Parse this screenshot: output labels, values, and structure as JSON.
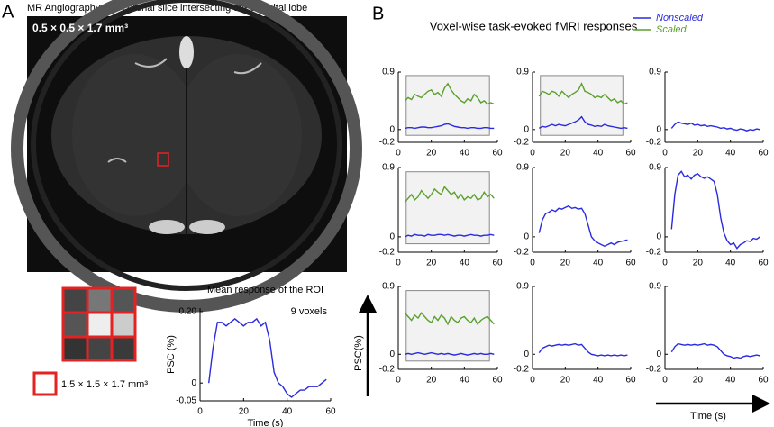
{
  "panels": {
    "a": {
      "label": "A",
      "image_title": "MR Angiography of a coronal slice intersecting the occipital lobe",
      "resolution": "0.5 × 0.5 × 1.7 mm³",
      "roi_resolution": "1.5 × 1.5 × 1.7 mm³"
    },
    "b": {
      "label": "B",
      "title": "Voxel-wise task-evoked fMRI responses",
      "y_axis_label": "PSC(%)",
      "x_axis_label": "Time (s)"
    }
  },
  "chart_data": [
    {
      "type": "line",
      "title": "Mean response of the ROI",
      "annotation": "9 voxels",
      "x_label": "Time (s)",
      "y_label": "PSC (%)",
      "xlim": [
        0,
        60
      ],
      "ylim": [
        -0.05,
        0.21
      ],
      "xticks": [
        0,
        20,
        40,
        60
      ],
      "yticks": [
        {
          "value": 0.2,
          "label": "0.20"
        },
        0,
        -0.05
      ],
      "x": [
        4,
        6,
        8,
        10,
        12,
        14,
        16,
        18,
        20,
        22,
        24,
        26,
        28,
        30,
        32,
        34,
        36,
        38,
        40,
        42,
        44,
        46,
        48,
        50,
        52,
        54,
        56,
        58
      ],
      "series": [
        {
          "color": "#2a2adf",
          "values": [
            0.0,
            0.1,
            0.17,
            0.17,
            0.16,
            0.17,
            0.18,
            0.17,
            0.16,
            0.17,
            0.17,
            0.18,
            0.16,
            0.17,
            0.12,
            0.03,
            0.0,
            -0.01,
            -0.03,
            -0.04,
            -0.03,
            -0.02,
            -0.02,
            -0.01,
            -0.01,
            -0.01,
            0.0,
            0.01
          ]
        }
      ]
    },
    {
      "type": "line",
      "xlim": [
        0,
        60
      ],
      "ylim": [
        -0.2,
        0.9
      ],
      "xticks": [
        0,
        20,
        40,
        60
      ],
      "yticks": [
        0.9,
        0,
        -0.2
      ],
      "legend": "top-right",
      "x": [
        4,
        6,
        8,
        10,
        12,
        14,
        16,
        18,
        20,
        22,
        24,
        26,
        28,
        30,
        32,
        34,
        36,
        38,
        40,
        42,
        44,
        46,
        48,
        50,
        52,
        54,
        56,
        58
      ],
      "series": [
        {
          "name": "Nonscaled",
          "color": "#2a2adf",
          "values": [
            0.02,
            0.03,
            0.03,
            0.02,
            0.03,
            0.04,
            0.04,
            0.03,
            0.03,
            0.04,
            0.05,
            0.06,
            0.08,
            0.09,
            0.07,
            0.05,
            0.04,
            0.03,
            0.03,
            0.02,
            0.03,
            0.03,
            0.02,
            0.02,
            0.03,
            0.03,
            0.02,
            0.02
          ]
        },
        {
          "name": "Scaled",
          "color": "#5aa02c",
          "values": [
            0.45,
            0.5,
            0.47,
            0.55,
            0.52,
            0.5,
            0.55,
            0.6,
            0.62,
            0.55,
            0.58,
            0.52,
            0.65,
            0.72,
            0.62,
            0.55,
            0.5,
            0.45,
            0.42,
            0.48,
            0.45,
            0.55,
            0.5,
            0.42,
            0.45,
            0.4,
            0.42,
            0.4
          ]
        }
      ]
    },
    {
      "type": "line",
      "xlim": [
        0,
        60
      ],
      "ylim": [
        -0.2,
        0.9
      ],
      "xticks": [
        0,
        20,
        40,
        60
      ],
      "yticks": [
        0.9,
        0,
        -0.2
      ],
      "x": [
        4,
        6,
        8,
        10,
        12,
        14,
        16,
        18,
        20,
        22,
        24,
        26,
        28,
        30,
        32,
        34,
        36,
        38,
        40,
        42,
        44,
        46,
        48,
        50,
        52,
        54,
        56,
        58
      ],
      "series": [
        {
          "color": "#2a2adf",
          "values": [
            0.02,
            0.05,
            0.04,
            0.06,
            0.08,
            0.06,
            0.08,
            0.07,
            0.06,
            0.08,
            0.1,
            0.12,
            0.15,
            0.2,
            0.12,
            0.08,
            0.07,
            0.05,
            0.06,
            0.05,
            0.08,
            0.06,
            0.05,
            0.04,
            0.03,
            0.02,
            0.03,
            0.02
          ]
        },
        {
          "color": "#5aa02c",
          "values": [
            0.52,
            0.6,
            0.58,
            0.55,
            0.6,
            0.58,
            0.52,
            0.6,
            0.55,
            0.5,
            0.55,
            0.58,
            0.62,
            0.72,
            0.6,
            0.58,
            0.55,
            0.5,
            0.52,
            0.5,
            0.55,
            0.5,
            0.45,
            0.48,
            0.42,
            0.45,
            0.4,
            0.42
          ]
        }
      ]
    },
    {
      "type": "line",
      "xlim": [
        0,
        60
      ],
      "ylim": [
        -0.2,
        0.9
      ],
      "xticks": [
        0,
        20,
        40,
        60
      ],
      "yticks": [
        0.9,
        0,
        -0.2
      ],
      "x": [
        4,
        6,
        8,
        10,
        12,
        14,
        16,
        18,
        20,
        22,
        24,
        26,
        28,
        30,
        32,
        34,
        36,
        38,
        40,
        42,
        44,
        46,
        48,
        50,
        52,
        54,
        56,
        58
      ],
      "series": [
        {
          "color": "#2a2adf",
          "values": [
            0.02,
            0.08,
            0.12,
            0.1,
            0.09,
            0.08,
            0.1,
            0.07,
            0.08,
            0.06,
            0.07,
            0.05,
            0.06,
            0.05,
            0.04,
            0.02,
            0.03,
            0.01,
            0.02,
            0.0,
            -0.01,
            0.01,
            0.0,
            -0.02,
            0.0,
            -0.01,
            0.01,
            0.0
          ]
        }
      ]
    },
    {
      "type": "line",
      "xlim": [
        0,
        60
      ],
      "ylim": [
        -0.2,
        0.9
      ],
      "xticks": [
        0,
        20,
        40,
        60
      ],
      "yticks": [
        0.9,
        0,
        -0.2
      ],
      "x": [
        4,
        6,
        8,
        10,
        12,
        14,
        16,
        18,
        20,
        22,
        24,
        26,
        28,
        30,
        32,
        34,
        36,
        38,
        40,
        42,
        44,
        46,
        48,
        50,
        52,
        54,
        56,
        58
      ],
      "series": [
        {
          "color": "#2a2adf",
          "values": [
            0.0,
            0.02,
            0.01,
            0.03,
            0.02,
            0.02,
            0.01,
            0.03,
            0.02,
            0.02,
            0.03,
            0.03,
            0.02,
            0.03,
            0.02,
            0.01,
            0.02,
            0.02,
            0.01,
            0.02,
            0.03,
            0.02,
            0.02,
            0.01,
            0.02,
            0.02,
            0.03,
            0.02
          ]
        },
        {
          "color": "#5aa02c",
          "values": [
            0.45,
            0.5,
            0.55,
            0.48,
            0.52,
            0.6,
            0.55,
            0.5,
            0.55,
            0.62,
            0.58,
            0.55,
            0.65,
            0.6,
            0.55,
            0.58,
            0.5,
            0.55,
            0.48,
            0.52,
            0.5,
            0.55,
            0.48,
            0.5,
            0.58,
            0.52,
            0.55,
            0.5
          ]
        }
      ]
    },
    {
      "type": "line",
      "xlim": [
        0,
        60
      ],
      "ylim": [
        -0.2,
        0.9
      ],
      "xticks": [
        0,
        20,
        40,
        60
      ],
      "yticks": [
        0.9,
        0,
        -0.2
      ],
      "x": [
        4,
        6,
        8,
        10,
        12,
        14,
        16,
        18,
        20,
        22,
        24,
        26,
        28,
        30,
        32,
        34,
        36,
        38,
        40,
        42,
        44,
        46,
        48,
        50,
        52,
        54,
        56,
        58
      ],
      "series": [
        {
          "color": "#2a2adf",
          "values": [
            0.05,
            0.22,
            0.3,
            0.32,
            0.35,
            0.33,
            0.37,
            0.36,
            0.38,
            0.4,
            0.37,
            0.38,
            0.36,
            0.37,
            0.3,
            0.15,
            0.0,
            -0.05,
            -0.08,
            -0.1,
            -0.12,
            -0.1,
            -0.08,
            -0.1,
            -0.07,
            -0.06,
            -0.05,
            -0.04
          ]
        }
      ]
    },
    {
      "type": "line",
      "xlim": [
        0,
        60
      ],
      "ylim": [
        -0.2,
        0.9
      ],
      "xticks": [
        0,
        20,
        40,
        60
      ],
      "yticks": [
        0.9,
        0,
        -0.2
      ],
      "x": [
        4,
        6,
        8,
        10,
        12,
        14,
        16,
        18,
        20,
        22,
        24,
        26,
        28,
        30,
        32,
        34,
        36,
        38,
        40,
        42,
        44,
        46,
        48,
        50,
        52,
        54,
        56,
        58
      ],
      "series": [
        {
          "color": "#2a2adf",
          "values": [
            0.1,
            0.55,
            0.8,
            0.85,
            0.78,
            0.8,
            0.75,
            0.8,
            0.82,
            0.78,
            0.76,
            0.78,
            0.75,
            0.72,
            0.55,
            0.25,
            0.05,
            -0.05,
            -0.1,
            -0.08,
            -0.15,
            -0.1,
            -0.08,
            -0.05,
            -0.06,
            -0.02,
            -0.03,
            0.0
          ]
        }
      ]
    },
    {
      "type": "line",
      "xlim": [
        0,
        60
      ],
      "ylim": [
        -0.2,
        0.9
      ],
      "xticks": [
        0,
        20,
        40,
        60
      ],
      "yticks": [
        0.9,
        0,
        -0.2
      ],
      "x": [
        4,
        6,
        8,
        10,
        12,
        14,
        16,
        18,
        20,
        22,
        24,
        26,
        28,
        30,
        32,
        34,
        36,
        38,
        40,
        42,
        44,
        46,
        48,
        50,
        52,
        54,
        56,
        58
      ],
      "series": [
        {
          "color": "#2a2adf",
          "values": [
            0.0,
            0.01,
            0.0,
            0.01,
            0.02,
            0.01,
            0.0,
            0.01,
            0.02,
            0.01,
            0.0,
            0.01,
            0.0,
            0.01,
            0.0,
            -0.01,
            0.0,
            0.01,
            0.0,
            -0.01,
            0.0,
            0.01,
            0.0,
            0.01,
            0.0,
            0.0,
            0.01,
            0.0
          ]
        },
        {
          "color": "#5aa02c",
          "values": [
            0.55,
            0.5,
            0.45,
            0.52,
            0.48,
            0.55,
            0.5,
            0.45,
            0.42,
            0.5,
            0.45,
            0.52,
            0.48,
            0.4,
            0.5,
            0.45,
            0.42,
            0.48,
            0.5,
            0.45,
            0.42,
            0.48,
            0.4,
            0.45,
            0.48,
            0.5,
            0.45,
            0.4
          ]
        }
      ]
    },
    {
      "type": "line",
      "xlim": [
        0,
        60
      ],
      "ylim": [
        -0.2,
        0.9
      ],
      "xticks": [
        0,
        20,
        40,
        60
      ],
      "yticks": [
        0.9,
        0,
        -0.2
      ],
      "x": [
        4,
        6,
        8,
        10,
        12,
        14,
        16,
        18,
        20,
        22,
        24,
        26,
        28,
        30,
        32,
        34,
        36,
        38,
        40,
        42,
        44,
        46,
        48,
        50,
        52,
        54,
        56,
        58
      ],
      "series": [
        {
          "color": "#2a2adf",
          "values": [
            0.02,
            0.08,
            0.1,
            0.12,
            0.11,
            0.12,
            0.13,
            0.12,
            0.13,
            0.12,
            0.13,
            0.14,
            0.12,
            0.13,
            0.08,
            0.03,
            0.0,
            -0.01,
            -0.02,
            -0.01,
            -0.02,
            -0.01,
            -0.02,
            -0.01,
            -0.02,
            -0.01,
            -0.02,
            -0.01
          ]
        }
      ]
    },
    {
      "type": "line",
      "xlim": [
        0,
        60
      ],
      "ylim": [
        -0.2,
        0.9
      ],
      "xticks": [
        0,
        20,
        40,
        60
      ],
      "yticks": [
        0.9,
        0,
        -0.2
      ],
      "x": [
        4,
        6,
        8,
        10,
        12,
        14,
        16,
        18,
        20,
        22,
        24,
        26,
        28,
        30,
        32,
        34,
        36,
        38,
        40,
        42,
        44,
        46,
        48,
        50,
        52,
        54,
        56,
        58
      ],
      "series": [
        {
          "color": "#2a2adf",
          "values": [
            0.03,
            0.1,
            0.14,
            0.13,
            0.12,
            0.13,
            0.12,
            0.13,
            0.12,
            0.13,
            0.14,
            0.12,
            0.13,
            0.12,
            0.1,
            0.05,
            0.0,
            -0.02,
            -0.03,
            -0.05,
            -0.04,
            -0.05,
            -0.03,
            -0.02,
            -0.03,
            -0.02,
            -0.01,
            -0.02
          ]
        }
      ]
    }
  ]
}
